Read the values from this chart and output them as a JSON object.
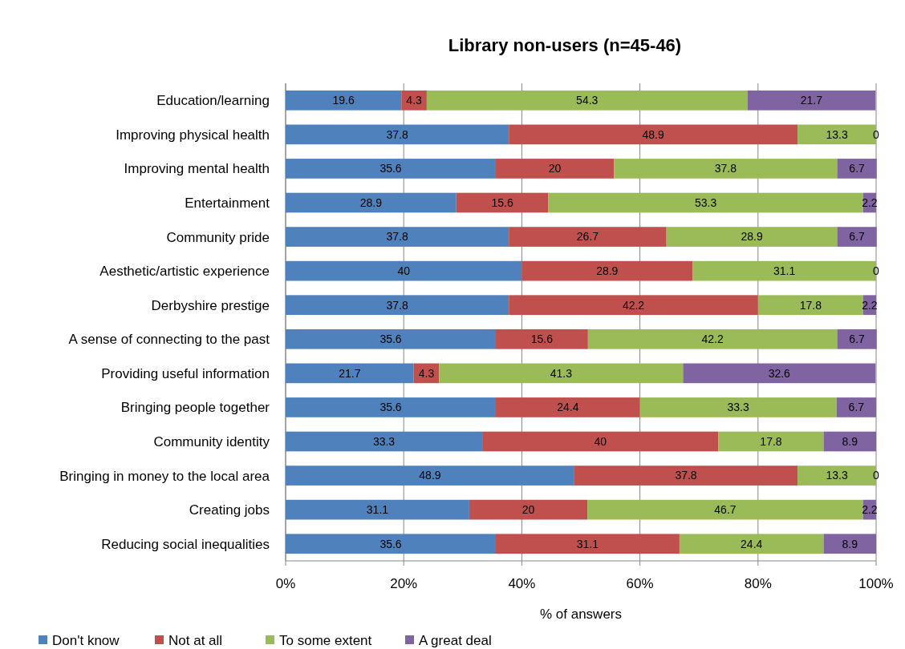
{
  "chart_data": {
    "type": "bar",
    "orientation": "horizontal",
    "stacked": true,
    "title": "Library non-users (n=45-46)",
    "xlabel": "% of answers",
    "categories": [
      "Education/learning",
      "Improving physical health",
      "Improving mental health",
      "Entertainment",
      "Community pride",
      "Aesthetic/artistic experience",
      "Derbyshire prestige",
      "A sense of connecting to the past",
      "Providing useful information",
      "Bringing people together",
      "Community identity",
      "Bringing in money to the local area",
      "Creating jobs",
      "Reducing social inequalities"
    ],
    "series": [
      {
        "name": "Don't know",
        "color": "#4f81bd",
        "values": [
          19.6,
          37.8,
          35.6,
          28.9,
          37.8,
          40,
          37.8,
          35.6,
          21.7,
          35.6,
          33.3,
          48.9,
          31.1,
          35.6
        ]
      },
      {
        "name": "Not at all",
        "color": "#c0504d",
        "values": [
          4.3,
          48.9,
          20,
          15.6,
          26.7,
          28.9,
          42.2,
          15.6,
          4.3,
          24.4,
          40,
          37.8,
          20,
          31.1
        ]
      },
      {
        "name": "To some extent",
        "color": "#9bbb59",
        "values": [
          54.3,
          13.3,
          37.8,
          53.3,
          28.9,
          31.1,
          17.8,
          42.2,
          41.3,
          33.3,
          17.8,
          13.3,
          46.7,
          24.4
        ]
      },
      {
        "name": "A great deal",
        "color": "#8064a2",
        "values": [
          21.7,
          0,
          6.7,
          2.2,
          6.7,
          0,
          2.2,
          6.7,
          32.6,
          6.7,
          8.9,
          0,
          2.2,
          8.9
        ]
      }
    ],
    "xlim": [
      0,
      100
    ],
    "xticks": [
      {
        "value": 0,
        "label": "0%"
      },
      {
        "value": 20,
        "label": "20%"
      },
      {
        "value": 40,
        "label": "40%"
      },
      {
        "value": 60,
        "label": "60%"
      },
      {
        "value": 80,
        "label": "80%"
      },
      {
        "value": 100,
        "label": "100%"
      }
    ],
    "grid": "x",
    "legend": "bottom",
    "data_labels": true
  }
}
